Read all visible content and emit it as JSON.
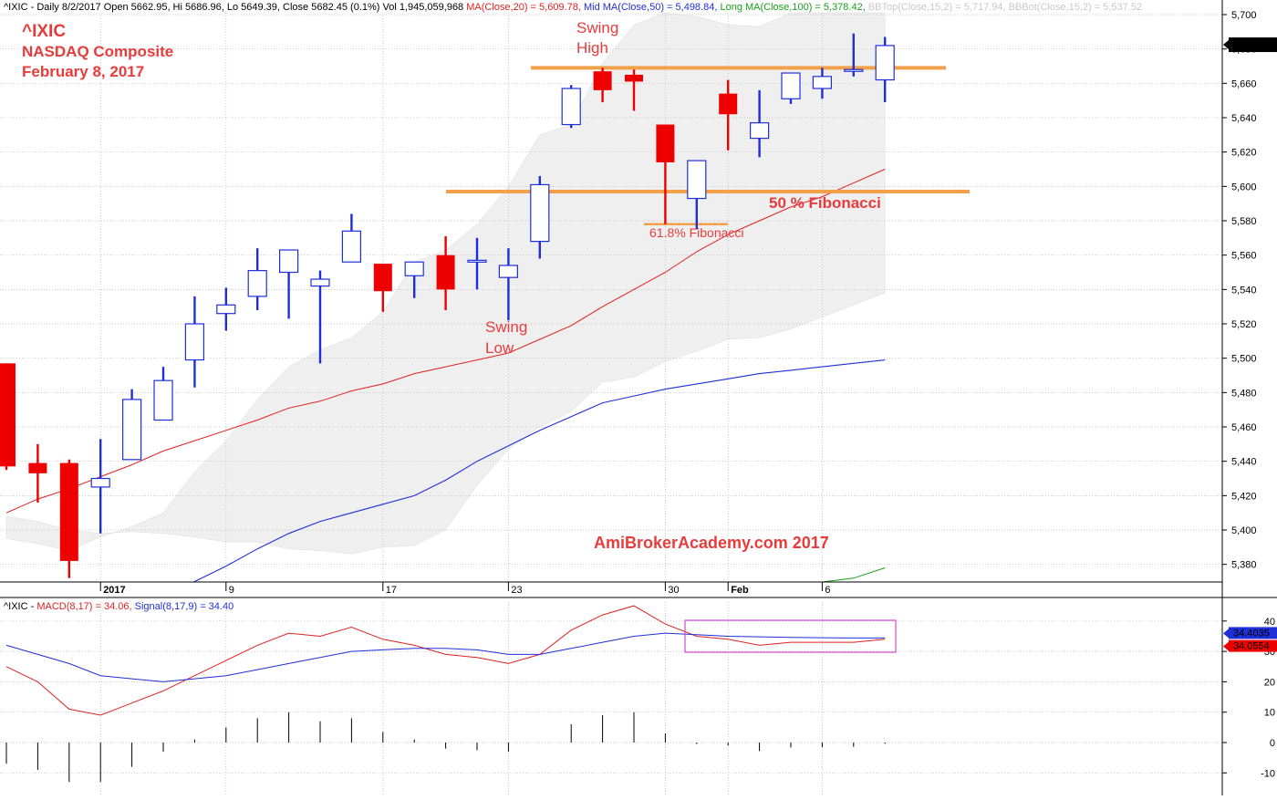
{
  "header": {
    "title_parts": [
      {
        "text": "^IXIC - Daily 8/2/2017 Open 5662.95, Hi 5686.96, Lo 5649.39, Close 5682.45 (0.1%) Vol 1,945,059,968 ",
        "color": "#000000"
      },
      {
        "text": "MA(Close,20) = 5,609.78, ",
        "color": "#e02020"
      },
      {
        "text": "Mid MA(Close,50) = 5,498.84, ",
        "color": "#1f2fd8"
      },
      {
        "text": "Long MA(Close,100) = 5,378.42, ",
        "color": "#1aa01a"
      },
      {
        "text": "BBTop(Close,15,2) = 5,717.94, ",
        "color": "#c8c8c8"
      },
      {
        "text": "BBBot(Close,15,2) = 5,537.52",
        "color": "#c8c8c8"
      }
    ],
    "macd_parts": [
      {
        "text": "^IXIC - ",
        "color": "#000000"
      },
      {
        "text": "MACD(8,17) = 34.06, ",
        "color": "#e02020"
      },
      {
        "text": "Signal(8,17,9) = 34.40",
        "color": "#1f2fd8"
      }
    ]
  },
  "annotations": {
    "symbol": "^IXIC",
    "name": "NASDAQ Composite",
    "date": "February 8, 2017",
    "swing_high": [
      "Swing",
      "High"
    ],
    "swing_low": [
      "Swing",
      "Low"
    ],
    "fib50": "50 % Fibonacci",
    "fib618": "61.8% Fibonacci",
    "watermark": "AmiBrokerAcademy.com  2017"
  },
  "colors": {
    "up": "#1f2fd8",
    "down": "#ee0000",
    "ma20": "#e02020",
    "ma50": "#1f2fd8",
    "ma100": "#1aa01a",
    "band": "#efefef",
    "orange": "#f2a04a",
    "accent_red": "#e83c3c",
    "box": "#d24ad2"
  },
  "chart_data": [
    {
      "type": "candlestick",
      "title": "^IXIC NASDAQ Composite",
      "ylim": [
        5370,
        5713
      ],
      "y_ticks": [
        5380,
        5400,
        5420,
        5440,
        5460,
        5480,
        5500,
        5520,
        5540,
        5560,
        5580,
        5600,
        5620,
        5640,
        5660,
        5680,
        5700
      ],
      "x_tick_labels": [
        "2017",
        "9",
        "17",
        "23",
        "30",
        "Feb",
        "6"
      ],
      "last_close_label": "5,682.45",
      "candles": [
        {
          "o": 5497,
          "h": 5497,
          "l": 5435,
          "c": 5437
        },
        {
          "o": 5439,
          "h": 5450,
          "l": 5416,
          "c": 5433
        },
        {
          "o": 5439,
          "h": 5441,
          "l": 5372,
          "c": 5382
        },
        {
          "o": 5425,
          "h": 5453,
          "l": 5398,
          "c": 5430
        },
        {
          "o": 5441,
          "h": 5482,
          "l": 5441,
          "c": 5476
        },
        {
          "o": 5464,
          "h": 5495,
          "l": 5464,
          "c": 5487
        },
        {
          "o": 5499,
          "h": 5536,
          "l": 5483,
          "c": 5520
        },
        {
          "o": 5526,
          "h": 5541,
          "l": 5516,
          "c": 5531
        },
        {
          "o": 5536,
          "h": 5564,
          "l": 5528,
          "c": 5551
        },
        {
          "o": 5550,
          "h": 5563,
          "l": 5523,
          "c": 5563
        },
        {
          "o": 5542,
          "h": 5551,
          "l": 5497,
          "c": 5546
        },
        {
          "o": 5556,
          "h": 5584,
          "l": 5556,
          "c": 5574
        },
        {
          "o": 5555,
          "h": 5555,
          "l": 5527,
          "c": 5539
        },
        {
          "o": 5548,
          "h": 5556,
          "l": 5535,
          "c": 5556
        },
        {
          "o": 5560,
          "h": 5571,
          "l": 5528,
          "c": 5540
        },
        {
          "o": 5557,
          "h": 5570,
          "l": 5540,
          "c": 5557
        },
        {
          "o": 5547,
          "h": 5564,
          "l": 5522,
          "c": 5554
        },
        {
          "o": 5568,
          "h": 5606,
          "l": 5558,
          "c": 5601
        },
        {
          "o": 5636,
          "h": 5659,
          "l": 5634,
          "c": 5657
        },
        {
          "o": 5667,
          "h": 5669,
          "l": 5649,
          "c": 5656
        },
        {
          "o": 5665,
          "h": 5668,
          "l": 5644,
          "c": 5661
        },
        {
          "o": 5636,
          "h": 5636,
          "l": 5578,
          "c": 5614
        },
        {
          "o": 5593,
          "h": 5615,
          "l": 5575,
          "c": 5615
        },
        {
          "o": 5654,
          "h": 5662,
          "l": 5621,
          "c": 5642
        },
        {
          "o": 5628,
          "h": 5656,
          "l": 5617,
          "c": 5637
        },
        {
          "o": 5651,
          "h": 5666,
          "l": 5648,
          "c": 5666
        },
        {
          "o": 5657,
          "h": 5669,
          "l": 5651,
          "c": 5664
        },
        {
          "o": 5668,
          "h": 5689,
          "l": 5664,
          "c": 5668
        },
        {
          "o": 5662,
          "h": 5687,
          "l": 5649,
          "c": 5682
        }
      ],
      "ma20": [
        5410,
        5418,
        5424,
        5431,
        5438,
        5446,
        5452,
        5458,
        5464,
        5471,
        5475,
        5481,
        5485,
        5491,
        5495,
        5499,
        5503,
        5511,
        5519,
        5530,
        5540,
        5550,
        5562,
        5572,
        5580,
        5588,
        5594,
        5602,
        5610
      ],
      "ma50": [
        5322,
        5330,
        5338,
        5346,
        5354,
        5362,
        5370,
        5379,
        5389,
        5398,
        5405,
        5410,
        5415,
        5420,
        5429,
        5440,
        5449,
        5458,
        5466,
        5474,
        5478,
        5482,
        5485,
        5488,
        5491,
        5493,
        5495,
        5497,
        5499
      ],
      "ma100": [
        5300,
        5302,
        5304,
        5306,
        5308,
        5310,
        5312,
        5314,
        5316,
        5318,
        5320,
        5322,
        5324,
        5326,
        5328,
        5330,
        5332,
        5334,
        5336,
        5338,
        5340,
        5342,
        5344,
        5346,
        5348,
        5350,
        5365,
        5372,
        5378
      ],
      "bb_top": [
        5395,
        5392,
        5388,
        5396,
        5402,
        5410,
        5434,
        5452,
        5476,
        5495,
        5505,
        5512,
        5527,
        5556,
        5563,
        5578,
        5600,
        5630,
        5636,
        5672,
        5694,
        5705,
        5699,
        5694,
        5693,
        5708,
        5720,
        5725,
        5718
      ],
      "bb_bot": [
        5408,
        5405,
        5400,
        5398,
        5399,
        5398,
        5396,
        5393,
        5393,
        5389,
        5388,
        5386,
        5390,
        5391,
        5400,
        5426,
        5447,
        5460,
        5469,
        5486,
        5489,
        5498,
        5504,
        5511,
        5512,
        5517,
        5524,
        5531,
        5538
      ],
      "swing_high_level": 5669,
      "fib_50_level": 5597,
      "fib_618_level": 5578
    },
    {
      "type": "line",
      "title": "MACD(8,17)",
      "ylim": [
        -15,
        45
      ],
      "y_ticks": [
        -10,
        0,
        10,
        20,
        30,
        40
      ],
      "last_signal_label": "34.4035",
      "last_macd_label": "34.0554",
      "series": [
        {
          "name": "MACD(8,17)",
          "values": [
            25,
            20,
            11,
            9,
            13,
            17,
            22,
            27,
            32,
            36,
            35,
            38,
            34,
            32,
            29,
            28,
            26,
            29,
            37,
            42,
            45,
            39,
            35,
            34,
            32,
            33,
            33,
            33,
            34
          ]
        },
        {
          "name": "Signal(8,17,9)",
          "values": [
            32,
            29,
            26,
            22,
            21,
            20,
            21,
            22,
            24,
            26,
            28,
            30,
            30.5,
            31,
            31,
            30.5,
            29,
            29,
            31,
            33,
            35,
            36,
            35.5,
            35,
            34.8,
            34.6,
            34.5,
            34.4,
            34.4
          ]
        },
        {
          "name": "Histogram",
          "values": [
            -7,
            -9,
            -13,
            -13,
            -8,
            -3,
            1,
            5,
            8,
            10,
            7,
            8,
            3.5,
            1,
            -2,
            -2.5,
            -3,
            0,
            6,
            9,
            10,
            3,
            -0.5,
            -1,
            -2.8,
            -1.6,
            -1.5,
            -1.4,
            -0.4
          ]
        }
      ]
    }
  ]
}
